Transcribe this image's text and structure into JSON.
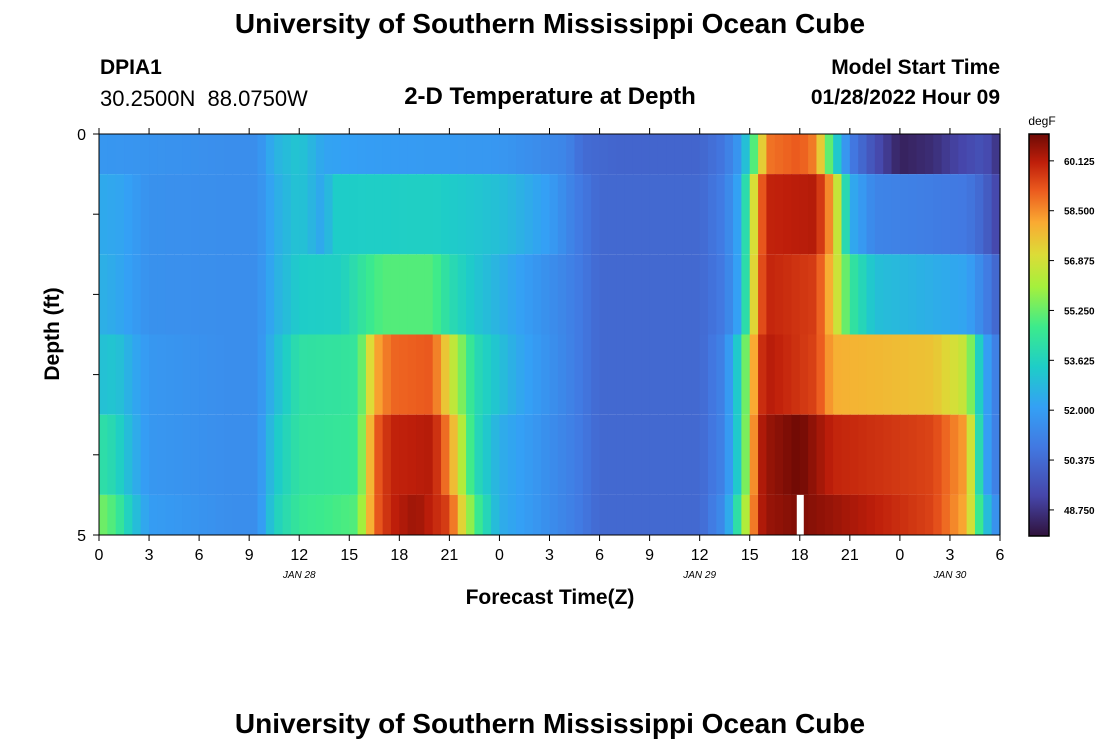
{
  "header": {
    "title": "University of Southern Mississippi Ocean Cube",
    "station_id": "DPIA1",
    "coordinates": "30.2500N  88.0750W",
    "subtitle": "2-D Temperature at Depth",
    "start_label": "Model Start Time",
    "start_value": "01/28/2022 Hour 09",
    "bottom_title": "University of Southern Mississippi Ocean Cube"
  },
  "chart_data": {
    "type": "heatmap",
    "title": "2-D Temperature at Depth",
    "xlabel": "Forecast Time(Z)",
    "ylabel": "Depth (ft)",
    "x_tick_labels": [
      "0",
      "3",
      "6",
      "9",
      "12",
      "15",
      "18",
      "21",
      "0",
      "3",
      "6",
      "9",
      "12",
      "15",
      "18",
      "21",
      "0",
      "3",
      "6"
    ],
    "date_labels": [
      {
        "label": "JAN 28",
        "tick_index": 4
      },
      {
        "label": "JAN 29",
        "tick_index": 12
      },
      {
        "label": "JAN 30",
        "tick_index": 17
      }
    ],
    "y_tick_labels": [
      "0",
      "5"
    ],
    "ylim": [
      0,
      5
    ],
    "colorbar": {
      "unit": "degF",
      "min": 47.9,
      "max": 61.0,
      "tick_labels": [
        "60.125",
        "58.500",
        "56.875",
        "55.250",
        "53.625",
        "52.000",
        "50.375",
        "48.750"
      ],
      "tick_values": [
        60.125,
        58.5,
        56.875,
        55.25,
        53.625,
        52.0,
        50.375,
        48.75
      ]
    },
    "layers": [
      {
        "depth_top": 0.0,
        "depth_bottom": 0.5,
        "knots": [
          [
            0,
            51.8
          ],
          [
            8,
            51.5
          ],
          [
            9.5,
            51.5
          ],
          [
            10.5,
            52.6
          ],
          [
            12,
            53.2
          ],
          [
            13.5,
            52.2
          ],
          [
            16,
            52.0
          ],
          [
            20,
            51.9
          ],
          [
            24,
            51.8
          ],
          [
            28,
            51.2
          ],
          [
            29,
            50.4
          ],
          [
            31,
            50.2
          ],
          [
            36,
            50.2
          ],
          [
            37.5,
            50.8
          ],
          [
            38.5,
            52.0
          ],
          [
            39,
            54.0
          ],
          [
            39.5,
            56.0
          ],
          [
            40,
            58.8
          ],
          [
            42,
            59.2
          ],
          [
            43,
            58.6
          ],
          [
            44,
            54.0
          ],
          [
            45,
            51.0
          ],
          [
            46.5,
            49.5
          ],
          [
            48,
            48.3
          ],
          [
            50,
            48.6
          ],
          [
            51,
            49.0
          ],
          [
            53,
            49.6
          ],
          [
            53.8,
            48.8
          ],
          [
            54,
            47.9
          ]
        ]
      },
      {
        "depth_top": 0.5,
        "depth_bottom": 1.5,
        "knots": [
          [
            0,
            52.4
          ],
          [
            1.5,
            52.2
          ],
          [
            3,
            51.6
          ],
          [
            8,
            51.5
          ],
          [
            9.5,
            51.5
          ],
          [
            10.5,
            52.4
          ],
          [
            12,
            53.2
          ],
          [
            13.5,
            52.2
          ],
          [
            14,
            53.4
          ],
          [
            20,
            53.5
          ],
          [
            24,
            53.0
          ],
          [
            27,
            52.0
          ],
          [
            28.5,
            51.0
          ],
          [
            30,
            50.3
          ],
          [
            36,
            50.3
          ],
          [
            37.5,
            51.0
          ],
          [
            38.5,
            52.5
          ],
          [
            39.5,
            58.5
          ],
          [
            40,
            60.0
          ],
          [
            43,
            60.2
          ],
          [
            44,
            58.0
          ],
          [
            45,
            52.5
          ],
          [
            46.5,
            51.2
          ],
          [
            52,
            50.8
          ],
          [
            53,
            50.2
          ],
          [
            54,
            49.0
          ]
        ]
      },
      {
        "depth_top": 1.5,
        "depth_bottom": 2.5,
        "knots": [
          [
            0,
            52.6
          ],
          [
            1.5,
            52.2
          ],
          [
            3,
            51.6
          ],
          [
            8,
            51.5
          ],
          [
            9.5,
            51.5
          ],
          [
            10.5,
            52.5
          ],
          [
            12,
            53.4
          ],
          [
            14.5,
            53.5
          ],
          [
            16,
            54.5
          ],
          [
            17,
            55.0
          ],
          [
            20,
            55.0
          ],
          [
            21,
            54.0
          ],
          [
            22.5,
            53.2
          ],
          [
            25,
            52.2
          ],
          [
            28.5,
            51.0
          ],
          [
            30,
            50.3
          ],
          [
            36,
            50.3
          ],
          [
            37.5,
            50.9
          ],
          [
            38.5,
            52.5
          ],
          [
            39.5,
            58.8
          ],
          [
            40,
            60.0
          ],
          [
            43,
            59.6
          ],
          [
            44,
            57.5
          ],
          [
            45,
            54.5
          ],
          [
            46.5,
            53.0
          ],
          [
            52,
            52.2
          ],
          [
            53,
            51.2
          ],
          [
            54,
            50.0
          ]
        ]
      },
      {
        "depth_top": 2.5,
        "depth_bottom": 3.5,
        "knots": [
          [
            0,
            53.0
          ],
          [
            1,
            53.2
          ],
          [
            2,
            52.4
          ],
          [
            3,
            51.8
          ],
          [
            8,
            51.5
          ],
          [
            9.5,
            51.5
          ],
          [
            10.5,
            52.8
          ],
          [
            12,
            54.2
          ],
          [
            15.5,
            54.4
          ],
          [
            16.5,
            58.0
          ],
          [
            17.5,
            59.0
          ],
          [
            20,
            59.2
          ],
          [
            21,
            57.0
          ],
          [
            22.5,
            54.0
          ],
          [
            25,
            52.4
          ],
          [
            28.5,
            51.0
          ],
          [
            30,
            50.3
          ],
          [
            36,
            50.3
          ],
          [
            37.5,
            51.2
          ],
          [
            38.5,
            54.0
          ],
          [
            39.5,
            59.5
          ],
          [
            40,
            60.2
          ],
          [
            43,
            59.5
          ],
          [
            44,
            58.0
          ],
          [
            50,
            57.6
          ],
          [
            52,
            56.5
          ],
          [
            53,
            52.5
          ],
          [
            54,
            50.6
          ]
        ]
      },
      {
        "depth_top": 3.5,
        "depth_bottom": 4.5,
        "knots": [
          [
            0,
            54.2
          ],
          [
            1,
            53.8
          ],
          [
            2,
            52.6
          ],
          [
            3,
            51.8
          ],
          [
            8,
            51.5
          ],
          [
            9.5,
            51.5
          ],
          [
            10.5,
            53.2
          ],
          [
            12,
            54.3
          ],
          [
            15.5,
            54.5
          ],
          [
            16.5,
            59.0
          ],
          [
            17.5,
            60.0
          ],
          [
            20,
            60.2
          ],
          [
            21,
            58.5
          ],
          [
            22.5,
            54.0
          ],
          [
            24,
            52.5
          ],
          [
            28.5,
            51.0
          ],
          [
            30,
            50.3
          ],
          [
            36,
            50.3
          ],
          [
            37.5,
            51.2
          ],
          [
            38.5,
            54.0
          ],
          [
            39.5,
            60.0
          ],
          [
            40,
            60.5
          ],
          [
            42,
            61.0
          ],
          [
            44,
            60.0
          ],
          [
            50,
            59.5
          ],
          [
            52,
            58.2
          ],
          [
            53,
            52.5
          ],
          [
            54,
            50.6
          ]
        ]
      },
      {
        "depth_top": 4.5,
        "depth_bottom": 5.0,
        "knots": [
          [
            0,
            55.5
          ],
          [
            1,
            54.8
          ],
          [
            2,
            53.2
          ],
          [
            3,
            52.0
          ],
          [
            8,
            51.5
          ],
          [
            9.5,
            51.5
          ],
          [
            10.5,
            53.5
          ],
          [
            12,
            54.5
          ],
          [
            15.5,
            55.0
          ],
          [
            16.5,
            59.0
          ],
          [
            17.5,
            60.0
          ],
          [
            19,
            60.5
          ],
          [
            21,
            59.5
          ],
          [
            22.5,
            55.0
          ],
          [
            24,
            52.5
          ],
          [
            28.5,
            51.0
          ],
          [
            30,
            50.3
          ],
          [
            36,
            50.3
          ],
          [
            37.5,
            51.5
          ],
          [
            38.5,
            55.0
          ],
          [
            39.5,
            60.0
          ],
          [
            40,
            60.5
          ],
          [
            42,
            60.8
          ],
          [
            44,
            60.5
          ],
          [
            50,
            59.5
          ],
          [
            52,
            58.0
          ],
          [
            53,
            53.5
          ],
          [
            54,
            51.0
          ]
        ]
      }
    ],
    "missing_cells": [
      {
        "hour": 42.0,
        "depth_top": 4.5,
        "depth_bottom": 5.0
      }
    ]
  }
}
